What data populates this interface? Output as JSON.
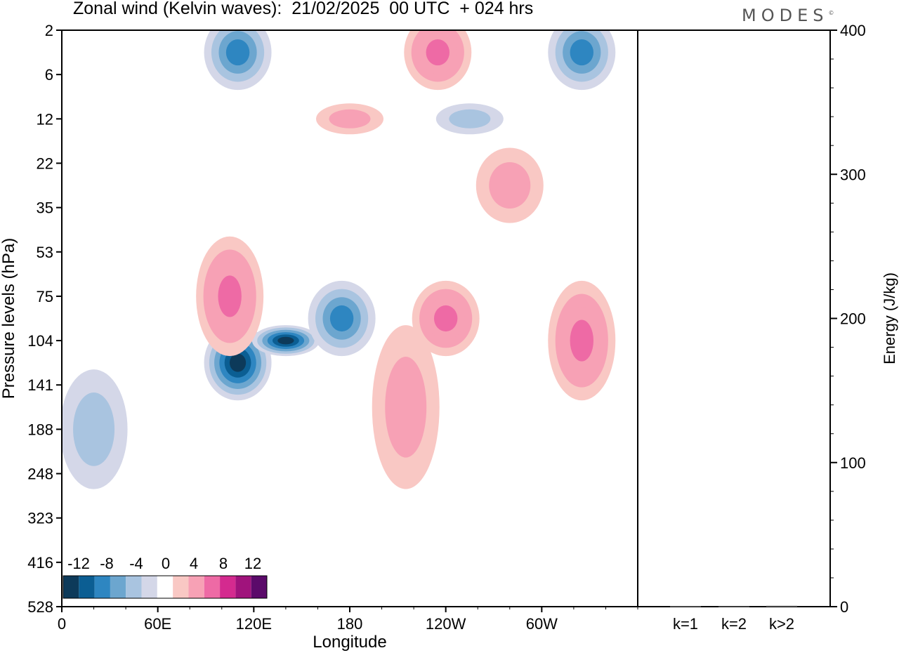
{
  "title": "Zonal wind (Kelvin waves):  21/02/2025  00 UTC  + 024 hrs",
  "brand": "MODES",
  "brand_mark": "©",
  "chart_data": [
    {
      "type": "heatmap",
      "title": "Zonal wind (Kelvin waves):  21/02/2025  00 UTC  + 024 hrs",
      "xlabel": "Longitude",
      "ylabel": "Pressure levels (hPa)",
      "x_ticks": [
        "0",
        "60E",
        "120E",
        "180",
        "120W",
        "60W"
      ],
      "x_tick_lon": [
        0,
        60,
        120,
        180,
        240,
        300
      ],
      "x_range": [
        0,
        360
      ],
      "y_ticks": [
        "2",
        "6",
        "12",
        "22",
        "35",
        "53",
        "75",
        "104",
        "141",
        "188",
        "248",
        "323",
        "416",
        "528"
      ],
      "y_direction": "downward (top = lowest pressure)",
      "colorbar": {
        "labels": [
          "-12",
          "-8",
          "-4",
          "0",
          "4",
          "8",
          "12"
        ],
        "colors": [
          "#0d3a5a",
          "#0b5e93",
          "#2e86c1",
          "#6ca6cf",
          "#a9c4e0",
          "#d4d7e8",
          "#ffffff",
          "#f9c8c4",
          "#f7a1b5",
          "#ee6aa5",
          "#d42a8f",
          "#a0137c",
          "#5b0a6a"
        ]
      },
      "features": [
        {
          "sign": "negative",
          "lon": 110,
          "level": "104-141",
          "peak": -12
        },
        {
          "sign": "negative",
          "lon": 140,
          "level": "104",
          "peak": -12
        },
        {
          "sign": "negative",
          "lon": 175,
          "level": "75-104",
          "peak": -8
        },
        {
          "sign": "negative",
          "lon": 20,
          "level": "141-248",
          "peak": -4
        },
        {
          "sign": "negative",
          "lon": 110,
          "level": "2-6",
          "peak": -8
        },
        {
          "sign": "negative",
          "lon": 325,
          "level": "2-6",
          "peak": -8
        },
        {
          "sign": "negative",
          "lon": 255,
          "level": "12",
          "peak": -4
        },
        {
          "sign": "positive",
          "lon": 240,
          "level": "75-104",
          "peak": 8
        },
        {
          "sign": "positive",
          "lon": 215,
          "level": "104-248",
          "peak": 4
        },
        {
          "sign": "positive",
          "lon": 325,
          "level": "75-141",
          "peak": 8
        },
        {
          "sign": "positive",
          "lon": 105,
          "level": "53-104",
          "peak": 8
        },
        {
          "sign": "positive",
          "lon": 235,
          "level": "2-6",
          "peak": 8
        },
        {
          "sign": "positive",
          "lon": 180,
          "level": "12",
          "peak": 4
        },
        {
          "sign": "positive",
          "lon": 280,
          "level": "22-35",
          "peak": 4
        }
      ]
    },
    {
      "type": "bar",
      "ylabel": "Energy (J/kg)",
      "categories": [
        "k=1",
        "k=2",
        "k>2"
      ],
      "values": [
        0.5,
        0.2,
        0.6
      ],
      "ylim": [
        0,
        400
      ],
      "y_ticks": [
        "0",
        "100",
        "200",
        "300",
        "400"
      ],
      "y_tick_values": [
        0,
        100,
        200,
        300,
        400
      ],
      "bar_color": "#555555"
    }
  ]
}
